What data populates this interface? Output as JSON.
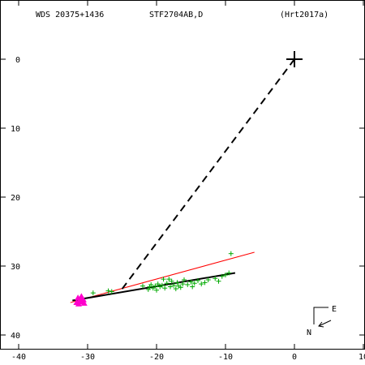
{
  "header": {
    "wds": "WDS 20375+1436",
    "discoverer": "STF2704AB,D",
    "reference": "(Hrt2017a)"
  },
  "chart_data": {
    "type": "scatter",
    "title": "",
    "xlabel": "",
    "ylabel": "",
    "xlim": [
      -40,
      10
    ],
    "ylim": [
      -42,
      7
    ],
    "y_inverted": true,
    "x_ticks": [
      -40,
      -30,
      -20,
      -10,
      0,
      10
    ],
    "x_tick_labels": [
      "-40",
      "-30",
      "-20",
      "-10",
      "0",
      "10"
    ],
    "y_ticks": [
      0,
      -10,
      -20,
      -30,
      -40
    ],
    "y_tick_labels": [
      "0",
      "10",
      "20",
      "30",
      "40"
    ],
    "grid": false,
    "primary": {
      "x": 0,
      "y": 0,
      "marker": "cross",
      "color": "#000000"
    },
    "dashed_line": {
      "x1": 0,
      "y1": 0,
      "x2": -25.2,
      "y2": -33.6,
      "color": "#000000"
    },
    "fit_line": {
      "x1": -32.2,
      "y1": -35.0,
      "x2": -8.6,
      "y2": -31.0,
      "color": "#000000"
    },
    "red_line": {
      "x1": -32.5,
      "y1": -35.3,
      "x2": -5.8,
      "y2": -28.0,
      "color": "#ff0000"
    },
    "colors": {
      "green": "#00aa00",
      "magenta": "#ff00cc"
    },
    "green_points": [
      [
        -29.2,
        -33.9
      ],
      [
        -27.0,
        -33.6
      ],
      [
        -21.2,
        -33.4
      ],
      [
        -21.0,
        -33.0
      ],
      [
        -20.8,
        -32.7
      ],
      [
        -20.5,
        -33.2
      ],
      [
        -20.2,
        -32.9
      ],
      [
        -20.0,
        -33.5
      ],
      [
        -19.8,
        -32.6
      ],
      [
        -19.5,
        -33.0
      ],
      [
        -19.2,
        -32.8
      ],
      [
        -19.0,
        -31.9
      ],
      [
        -18.8,
        -33.2
      ],
      [
        -18.5,
        -32.5
      ],
      [
        -18.0,
        -33.0
      ],
      [
        -17.8,
        -32.2
      ],
      [
        -17.5,
        -32.8
      ],
      [
        -17.2,
        -33.3
      ],
      [
        -17.0,
        -32.4
      ],
      [
        -16.8,
        -32.9
      ],
      [
        -16.5,
        -33.1
      ],
      [
        -16.2,
        -32.6
      ],
      [
        -16.0,
        -32.0
      ],
      [
        -15.5,
        -32.7
      ],
      [
        -15.0,
        -32.3
      ],
      [
        -14.8,
        -33.0
      ],
      [
        -14.5,
        -32.5
      ],
      [
        -14.0,
        -32.1
      ],
      [
        -13.5,
        -32.6
      ],
      [
        -13.0,
        -32.4
      ],
      [
        -12.5,
        -32.0
      ],
      [
        -11.5,
        -31.8
      ],
      [
        -11.0,
        -32.2
      ],
      [
        -10.5,
        -31.5
      ],
      [
        -10.0,
        -31.3
      ],
      [
        -9.5,
        -31.0
      ],
      [
        -9.2,
        -28.2
      ],
      [
        -26.5,
        -33.7
      ],
      [
        -22.0,
        -32.9
      ],
      [
        -18.2,
        -31.9
      ]
    ],
    "magenta_points": [
      [
        -31.4,
        -34.6
      ],
      [
        -31.2,
        -35.0
      ],
      [
        -31.0,
        -34.8
      ],
      [
        -30.8,
        -35.2
      ],
      [
        -30.6,
        -34.9
      ],
      [
        -31.6,
        -35.3
      ],
      [
        -30.9,
        -34.4
      ],
      [
        -31.3,
        -35.5
      ],
      [
        -30.5,
        -35.4
      ],
      [
        -31.1,
        -35.1
      ]
    ],
    "compass": {
      "east": "E",
      "north": "N"
    }
  }
}
